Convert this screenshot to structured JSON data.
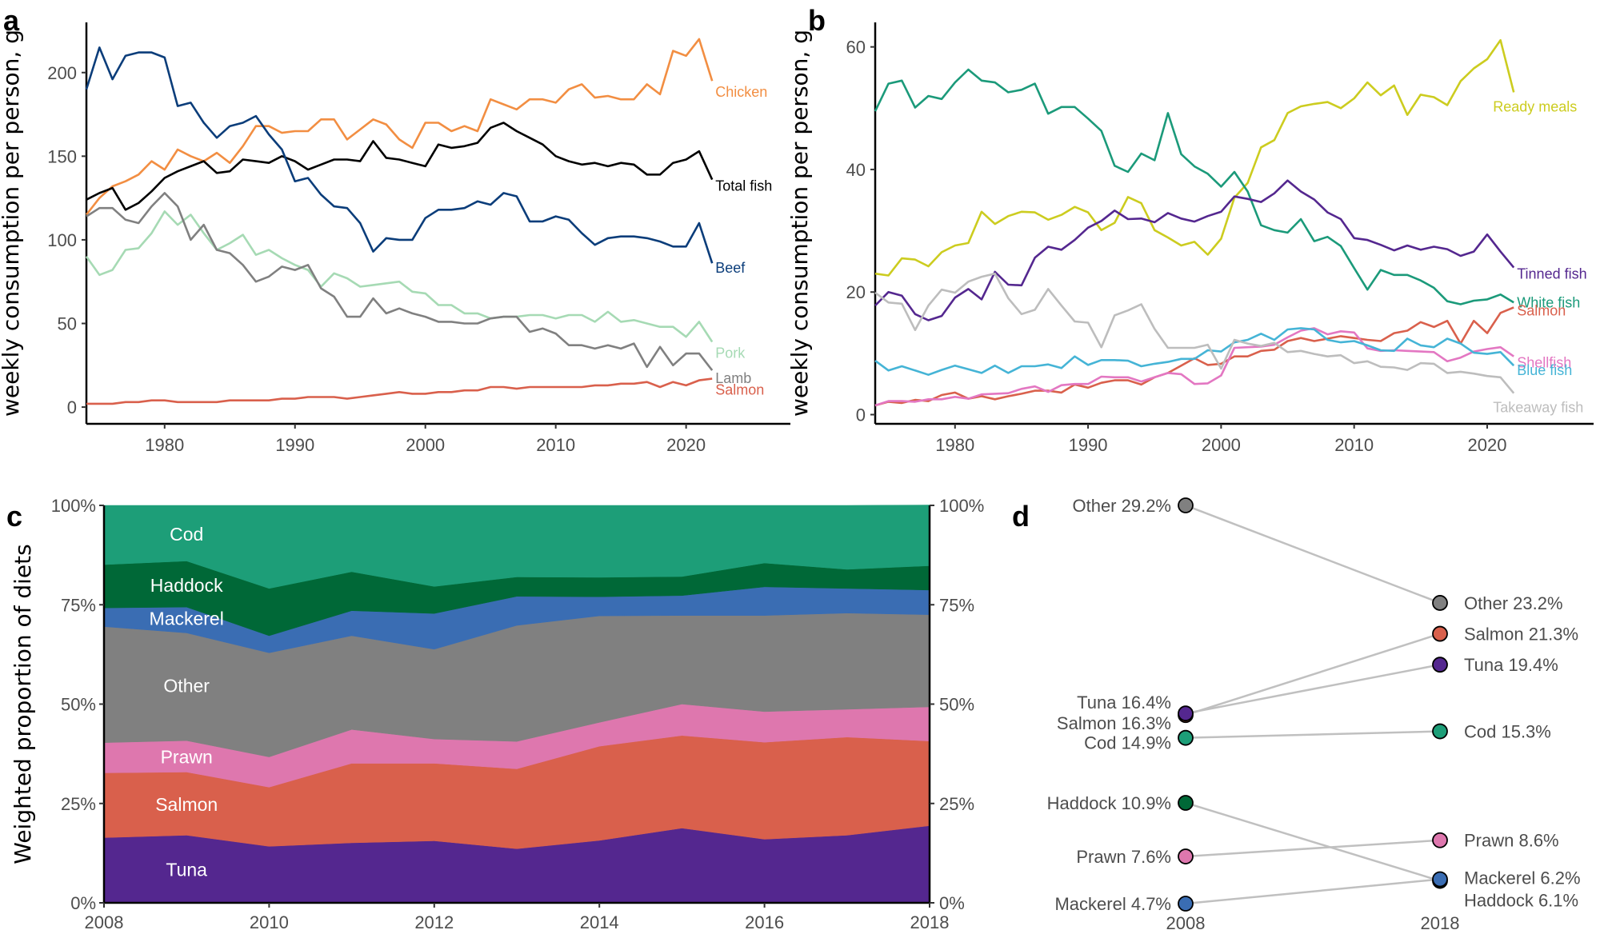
{
  "chart_data": [
    {
      "id": "a",
      "panel_letter": "a",
      "type": "line",
      "ylabel": "weekly consumption per person, g",
      "xlim": [
        1974,
        2028
      ],
      "ylim": [
        -10,
        230
      ],
      "xticks": [
        1980,
        1990,
        2000,
        2010,
        2020
      ],
      "yticks": [
        0,
        50,
        100,
        150,
        200
      ],
      "x": [
        1974,
        1975,
        1976,
        1977,
        1978,
        1979,
        1980,
        1981,
        1982,
        1983,
        1984,
        1985,
        1986,
        1987,
        1988,
        1989,
        1990,
        1991,
        1992,
        1993,
        1994,
        1995,
        1996,
        1997,
        1998,
        1999,
        2000,
        2001,
        2002,
        2003,
        2004,
        2005,
        2006,
        2007,
        2008,
        2009,
        2010,
        2011,
        2012,
        2013,
        2014,
        2015,
        2016,
        2017,
        2018,
        2019,
        2020,
        2021,
        2022
      ],
      "series": [
        {
          "name": "Chicken",
          "color": "#f28e42",
          "values": [
            115,
            125,
            132,
            135,
            139,
            147,
            142,
            154,
            150,
            147,
            152,
            146,
            156,
            168,
            168,
            164,
            165,
            165,
            172,
            172,
            160,
            166,
            172,
            169,
            160,
            155,
            170,
            170,
            165,
            168,
            165,
            184,
            181,
            178,
            184,
            184,
            182,
            190,
            193,
            185,
            186,
            184,
            184,
            193,
            187,
            213,
            210,
            220,
            195
          ]
        },
        {
          "name": "Total fish",
          "color": "#000000",
          "values": [
            124,
            128,
            131,
            118,
            122,
            129,
            137,
            141,
            144,
            147,
            140,
            141,
            148,
            147,
            146,
            150,
            147,
            142,
            145,
            148,
            148,
            147,
            159,
            149,
            148,
            146,
            144,
            157,
            155,
            156,
            158,
            167,
            170,
            165,
            161,
            157,
            150,
            147,
            145,
            146,
            144,
            146,
            145,
            139,
            139,
            146,
            148,
            153,
            136
          ]
        },
        {
          "name": "Beef",
          "color": "#0b3d7a",
          "values": [
            190,
            215,
            196,
            210,
            212,
            212,
            209,
            180,
            182,
            170,
            161,
            168,
            170,
            174,
            163,
            154,
            135,
            137,
            127,
            120,
            119,
            110,
            93,
            101,
            100,
            100,
            113,
            118,
            118,
            119,
            123,
            121,
            128,
            126,
            111,
            111,
            114,
            112,
            104,
            97,
            101,
            102,
            102,
            101,
            99,
            96,
            96,
            110,
            86
          ]
        },
        {
          "name": "Pork",
          "color": "#a6dab4",
          "values": [
            90,
            79,
            82,
            94,
            95,
            104,
            117,
            109,
            115,
            104,
            94,
            98,
            103,
            91,
            94,
            89,
            85,
            82,
            72,
            80,
            77,
            72,
            73,
            74,
            75,
            69,
            68,
            61,
            61,
            56,
            56,
            53,
            54,
            54,
            55,
            55,
            53,
            55,
            55,
            51,
            57,
            51,
            52,
            50,
            48,
            48,
            42,
            51,
            39
          ]
        },
        {
          "name": "Lamb",
          "color": "#808080",
          "values": [
            114,
            119,
            119,
            112,
            110,
            120,
            128,
            120,
            100,
            109,
            94,
            92,
            85,
            75,
            78,
            84,
            82,
            85,
            71,
            66,
            54,
            54,
            65,
            56,
            59,
            56,
            54,
            51,
            51,
            50,
            50,
            53,
            54,
            54,
            45,
            47,
            44,
            37,
            37,
            35,
            37,
            35,
            38,
            24,
            36,
            25,
            32,
            32,
            22
          ]
        },
        {
          "name": "Salmon",
          "color": "#d9604c",
          "values": [
            2,
            2,
            2,
            3,
            3,
            4,
            4,
            3,
            3,
            3,
            3,
            4,
            4,
            4,
            4,
            5,
            5,
            6,
            6,
            6,
            5,
            6,
            7,
            8,
            9,
            8,
            8,
            9,
            9,
            10,
            10,
            12,
            12,
            11,
            12,
            12,
            12,
            12,
            12,
            13,
            13,
            14,
            14,
            15,
            12,
            15,
            13,
            16,
            17
          ]
        }
      ]
    },
    {
      "id": "b",
      "panel_letter": "b",
      "type": "line",
      "ylabel": "weekly consumption per person, g",
      "xlim": [
        1974,
        2028
      ],
      "ylim": [
        -1.5,
        64
      ],
      "xticks": [
        1980,
        1990,
        2000,
        2010,
        2020
      ],
      "yticks": [
        0,
        20,
        40,
        60
      ],
      "x": [
        1974,
        1975,
        1976,
        1977,
        1978,
        1979,
        1980,
        1981,
        1982,
        1983,
        1984,
        1985,
        1986,
        1987,
        1988,
        1989,
        1990,
        1991,
        1992,
        1993,
        1994,
        1995,
        1996,
        1997,
        1998,
        1999,
        2000,
        2001,
        2002,
        2003,
        2004,
        2005,
        2006,
        2007,
        2008,
        2009,
        2010,
        2011,
        2012,
        2013,
        2014,
        2015,
        2016,
        2017,
        2018,
        2019,
        2020,
        2021,
        2022
      ],
      "series": [
        {
          "name": "Ready meals",
          "color": "#cccc1f",
          "values": [
            23,
            22.7,
            25.5,
            25.3,
            24.2,
            26.5,
            27.6,
            28,
            33.1,
            31.1,
            32.4,
            33.1,
            33,
            31.8,
            32.6,
            33.9,
            33,
            30.1,
            31.3,
            35.5,
            34.5,
            30.1,
            28.9,
            27.6,
            28.2,
            26.1,
            28.7,
            35.4,
            37.8,
            43.6,
            44.8,
            49.2,
            50.3,
            50.7,
            51,
            50,
            51.6,
            54.2,
            52.1,
            53.7,
            48.9,
            52.2,
            51.8,
            50.5,
            54.4,
            56.5,
            58,
            61.1,
            52.6
          ]
        },
        {
          "name": "White fish",
          "color": "#1b9a7a",
          "values": [
            49.5,
            54,
            54.5,
            50.1,
            52,
            51.5,
            54.2,
            56.3,
            54.5,
            54.2,
            52.6,
            53,
            54,
            49.1,
            50.2,
            50.2,
            48.3,
            46.3,
            40.6,
            39.6,
            42.6,
            41.5,
            49.2,
            42.5,
            40.5,
            39.3,
            37.2,
            39.6,
            36.4,
            30.9,
            30.1,
            29.7,
            31.9,
            28.3,
            29,
            27.5,
            23.9,
            20.4,
            23.6,
            22.8,
            22.8,
            21.9,
            20.7,
            18.5,
            18,
            18.6,
            18.8,
            19.6,
            18.3
          ]
        },
        {
          "name": "Tinned fish",
          "color": "#54278f",
          "values": [
            17.8,
            20,
            19.4,
            16.4,
            15.4,
            16.1,
            19.1,
            20.5,
            18.8,
            23.3,
            21.2,
            21.1,
            25.6,
            27.4,
            26.9,
            28.5,
            30.5,
            31.6,
            33.3,
            31.9,
            32,
            31.4,
            32.9,
            32,
            31.5,
            32.4,
            33.1,
            35.6,
            35.2,
            34.7,
            36.1,
            38.2,
            36.4,
            35.1,
            33,
            31.9,
            28.8,
            28.5,
            27.7,
            26.8,
            27.6,
            26.9,
            27.4,
            27,
            25.9,
            26.6,
            29.4,
            26.6,
            24
          ]
        },
        {
          "name": "Salmon",
          "color": "#d9604c",
          "values": [
            1.5,
            2.1,
            1.9,
            2.4,
            2.2,
            3.2,
            3.6,
            2.6,
            3,
            2.5,
            3,
            3.4,
            3.9,
            3.9,
            3.6,
            4.9,
            4.4,
            5.2,
            5.6,
            5.6,
            4.9,
            6.1,
            6.8,
            8,
            9.2,
            8.1,
            8.3,
            9.5,
            9.5,
            10.4,
            10.6,
            12,
            12.5,
            12,
            12.4,
            12.8,
            12.5,
            12.2,
            12,
            13.3,
            13.7,
            15.1,
            14.3,
            15.3,
            11.6,
            15.3,
            13.3,
            16.6,
            17.5
          ]
        },
        {
          "name": "Shellfish",
          "color": "#e377c2",
          "values": [
            1.5,
            2.2,
            2.2,
            2.1,
            2.5,
            2.5,
            2.9,
            2.6,
            3.3,
            3.4,
            3.5,
            4.2,
            4.6,
            3.7,
            4.8,
            5,
            5,
            6.2,
            6.1,
            6.1,
            5.4,
            6.1,
            6.8,
            6.6,
            5,
            5.1,
            6.4,
            10.9,
            11,
            11.1,
            11.4,
            12.6,
            13.7,
            14.1,
            13.1,
            13.6,
            13.4,
            10.8,
            10.4,
            10.5,
            10.4,
            10.3,
            10.2,
            8.7,
            9.3,
            10.3,
            10.7,
            11,
            9.5
          ]
        },
        {
          "name": "Blue fish",
          "color": "#45b4d6",
          "values": [
            8.8,
            7.2,
            7.9,
            7.2,
            6.5,
            7.3,
            8,
            7.4,
            6.8,
            8,
            6.8,
            7.9,
            7.9,
            8.2,
            7.6,
            9.5,
            8.1,
            8.9,
            8.9,
            8.8,
            7.9,
            8.3,
            8.6,
            9.1,
            9.1,
            10.5,
            10.3,
            11.8,
            12.2,
            13.2,
            12.2,
            13.9,
            14.1,
            13.9,
            12.2,
            11.8,
            12,
            11.3,
            10.5,
            10.4,
            12.4,
            11.3,
            11,
            12.4,
            11.6,
            10.1,
            9.9,
            10.2,
            8
          ]
        },
        {
          "name": "Takeaway fish",
          "color": "#bdbdbd",
          "values": [
            19.9,
            18.3,
            18.1,
            13.8,
            17.8,
            20.4,
            19.9,
            21.7,
            22.5,
            23,
            19,
            16.4,
            17.1,
            20.5,
            17.8,
            15.2,
            15,
            11,
            16.2,
            17,
            18,
            14,
            10.9,
            10.9,
            10.9,
            11.4,
            7.5,
            12.2,
            11.6,
            11.2,
            11.7,
            10.2,
            10.4,
            9.9,
            9.5,
            9.7,
            8.4,
            8.7,
            7.8,
            7.7,
            7.3,
            8.4,
            8.3,
            6.8,
            7,
            6.7,
            6.3,
            6.1,
            3.5
          ]
        }
      ]
    },
    {
      "id": "c",
      "panel_letter": "c",
      "type": "area",
      "stacked": true,
      "ylabel": "Weighted proportion of diets",
      "xlim": [
        2008,
        2018
      ],
      "ylim": [
        0,
        100
      ],
      "xticks": [
        2008,
        2010,
        2012,
        2014,
        2016,
        2018
      ],
      "ytick_labels": [
        "0%",
        "25%",
        "50%",
        "75%",
        "100%"
      ],
      "x": [
        2008,
        2009,
        2010,
        2011,
        2012,
        2013,
        2014,
        2015,
        2016,
        2017,
        2018
      ],
      "series": [
        {
          "name": "Tuna",
          "color": "#54278f",
          "values": [
            16.4,
            17,
            14.2,
            15.1,
            15.6,
            13.6,
            15.7,
            18.8,
            16,
            17,
            19.4
          ]
        },
        {
          "name": "Salmon",
          "color": "#d9604c",
          "values": [
            16.3,
            15.9,
            14.9,
            20,
            19.5,
            20.1,
            23.7,
            23.3,
            24.4,
            24.7,
            21.3
          ]
        },
        {
          "name": "Prawn",
          "color": "#de77ae",
          "values": [
            7.6,
            7.9,
            7.6,
            8.5,
            6.1,
            6.9,
            6,
            7.9,
            7.7,
            7,
            8.6
          ]
        },
        {
          "name": "Other",
          "color": "#808080",
          "values": [
            29.2,
            27.1,
            26.2,
            23.6,
            22.6,
            29.2,
            26.8,
            22.3,
            24.2,
            24.2,
            23.2
          ]
        },
        {
          "name": "Mackerel",
          "color": "#3a6db3",
          "values": [
            4.7,
            6.5,
            4.3,
            6.3,
            9,
            7.3,
            4.8,
            5,
            7.2,
            6.2,
            6.2
          ]
        },
        {
          "name": "Haddock",
          "color": "#006837",
          "values": [
            10.9,
            11.6,
            11.9,
            9.8,
            6.8,
            4.9,
            4.9,
            4.8,
            6,
            4.8,
            6.1
          ]
        },
        {
          "name": "Cod",
          "color": "#1d9e78",
          "values": [
            14.9,
            14,
            20.9,
            16.7,
            20.4,
            18,
            18.1,
            17.9,
            14.5,
            16.1,
            15.3
          ]
        }
      ],
      "area_labels": [
        "Cod",
        "Haddock",
        "Mackerel",
        "Other",
        "Prawn",
        "Salmon",
        "Tuna"
      ]
    },
    {
      "id": "d",
      "panel_letter": "d",
      "type": "slope",
      "x_labels": [
        "2008",
        "2018"
      ],
      "ylim": [
        0,
        30
      ],
      "points_2008": [
        {
          "name": "Other",
          "value": 29.2,
          "label": "Other 29.2%",
          "color": "#808080"
        },
        {
          "name": "Tuna",
          "value": 16.4,
          "label": "Tuna 16.4%",
          "color": "#54278f"
        },
        {
          "name": "Salmon",
          "value": 16.3,
          "label": "Salmon 16.3%",
          "color": "#d9604c"
        },
        {
          "name": "Cod",
          "value": 14.9,
          "label": "Cod 14.9%",
          "color": "#1d9e78"
        },
        {
          "name": "Haddock",
          "value": 10.9,
          "label": "Haddock 10.9%",
          "color": "#006837"
        },
        {
          "name": "Prawn",
          "value": 7.6,
          "label": "Prawn 7.6%",
          "color": "#de77ae"
        },
        {
          "name": "Mackerel",
          "value": 4.7,
          "label": "Mackerel 4.7%",
          "color": "#3a6db3"
        }
      ],
      "points_2018": [
        {
          "name": "Other",
          "value": 23.2,
          "label": "Other 23.2%",
          "color": "#808080"
        },
        {
          "name": "Salmon",
          "value": 21.3,
          "label": "Salmon 21.3%",
          "color": "#d9604c"
        },
        {
          "name": "Tuna",
          "value": 19.4,
          "label": "Tuna 19.4%",
          "color": "#54278f"
        },
        {
          "name": "Cod",
          "value": 15.3,
          "label": "Cod 15.3%",
          "color": "#1d9e78"
        },
        {
          "name": "Prawn",
          "value": 8.6,
          "label": "Prawn 8.6%",
          "color": "#de77ae"
        },
        {
          "name": "Haddock",
          "value": 6.1,
          "label": "Haddock 6.1%",
          "color": "#006837"
        },
        {
          "name": "Mackerel",
          "value": 6.2,
          "label": "Mackerel 6.2%",
          "color": "#3a6db3"
        }
      ]
    }
  ]
}
